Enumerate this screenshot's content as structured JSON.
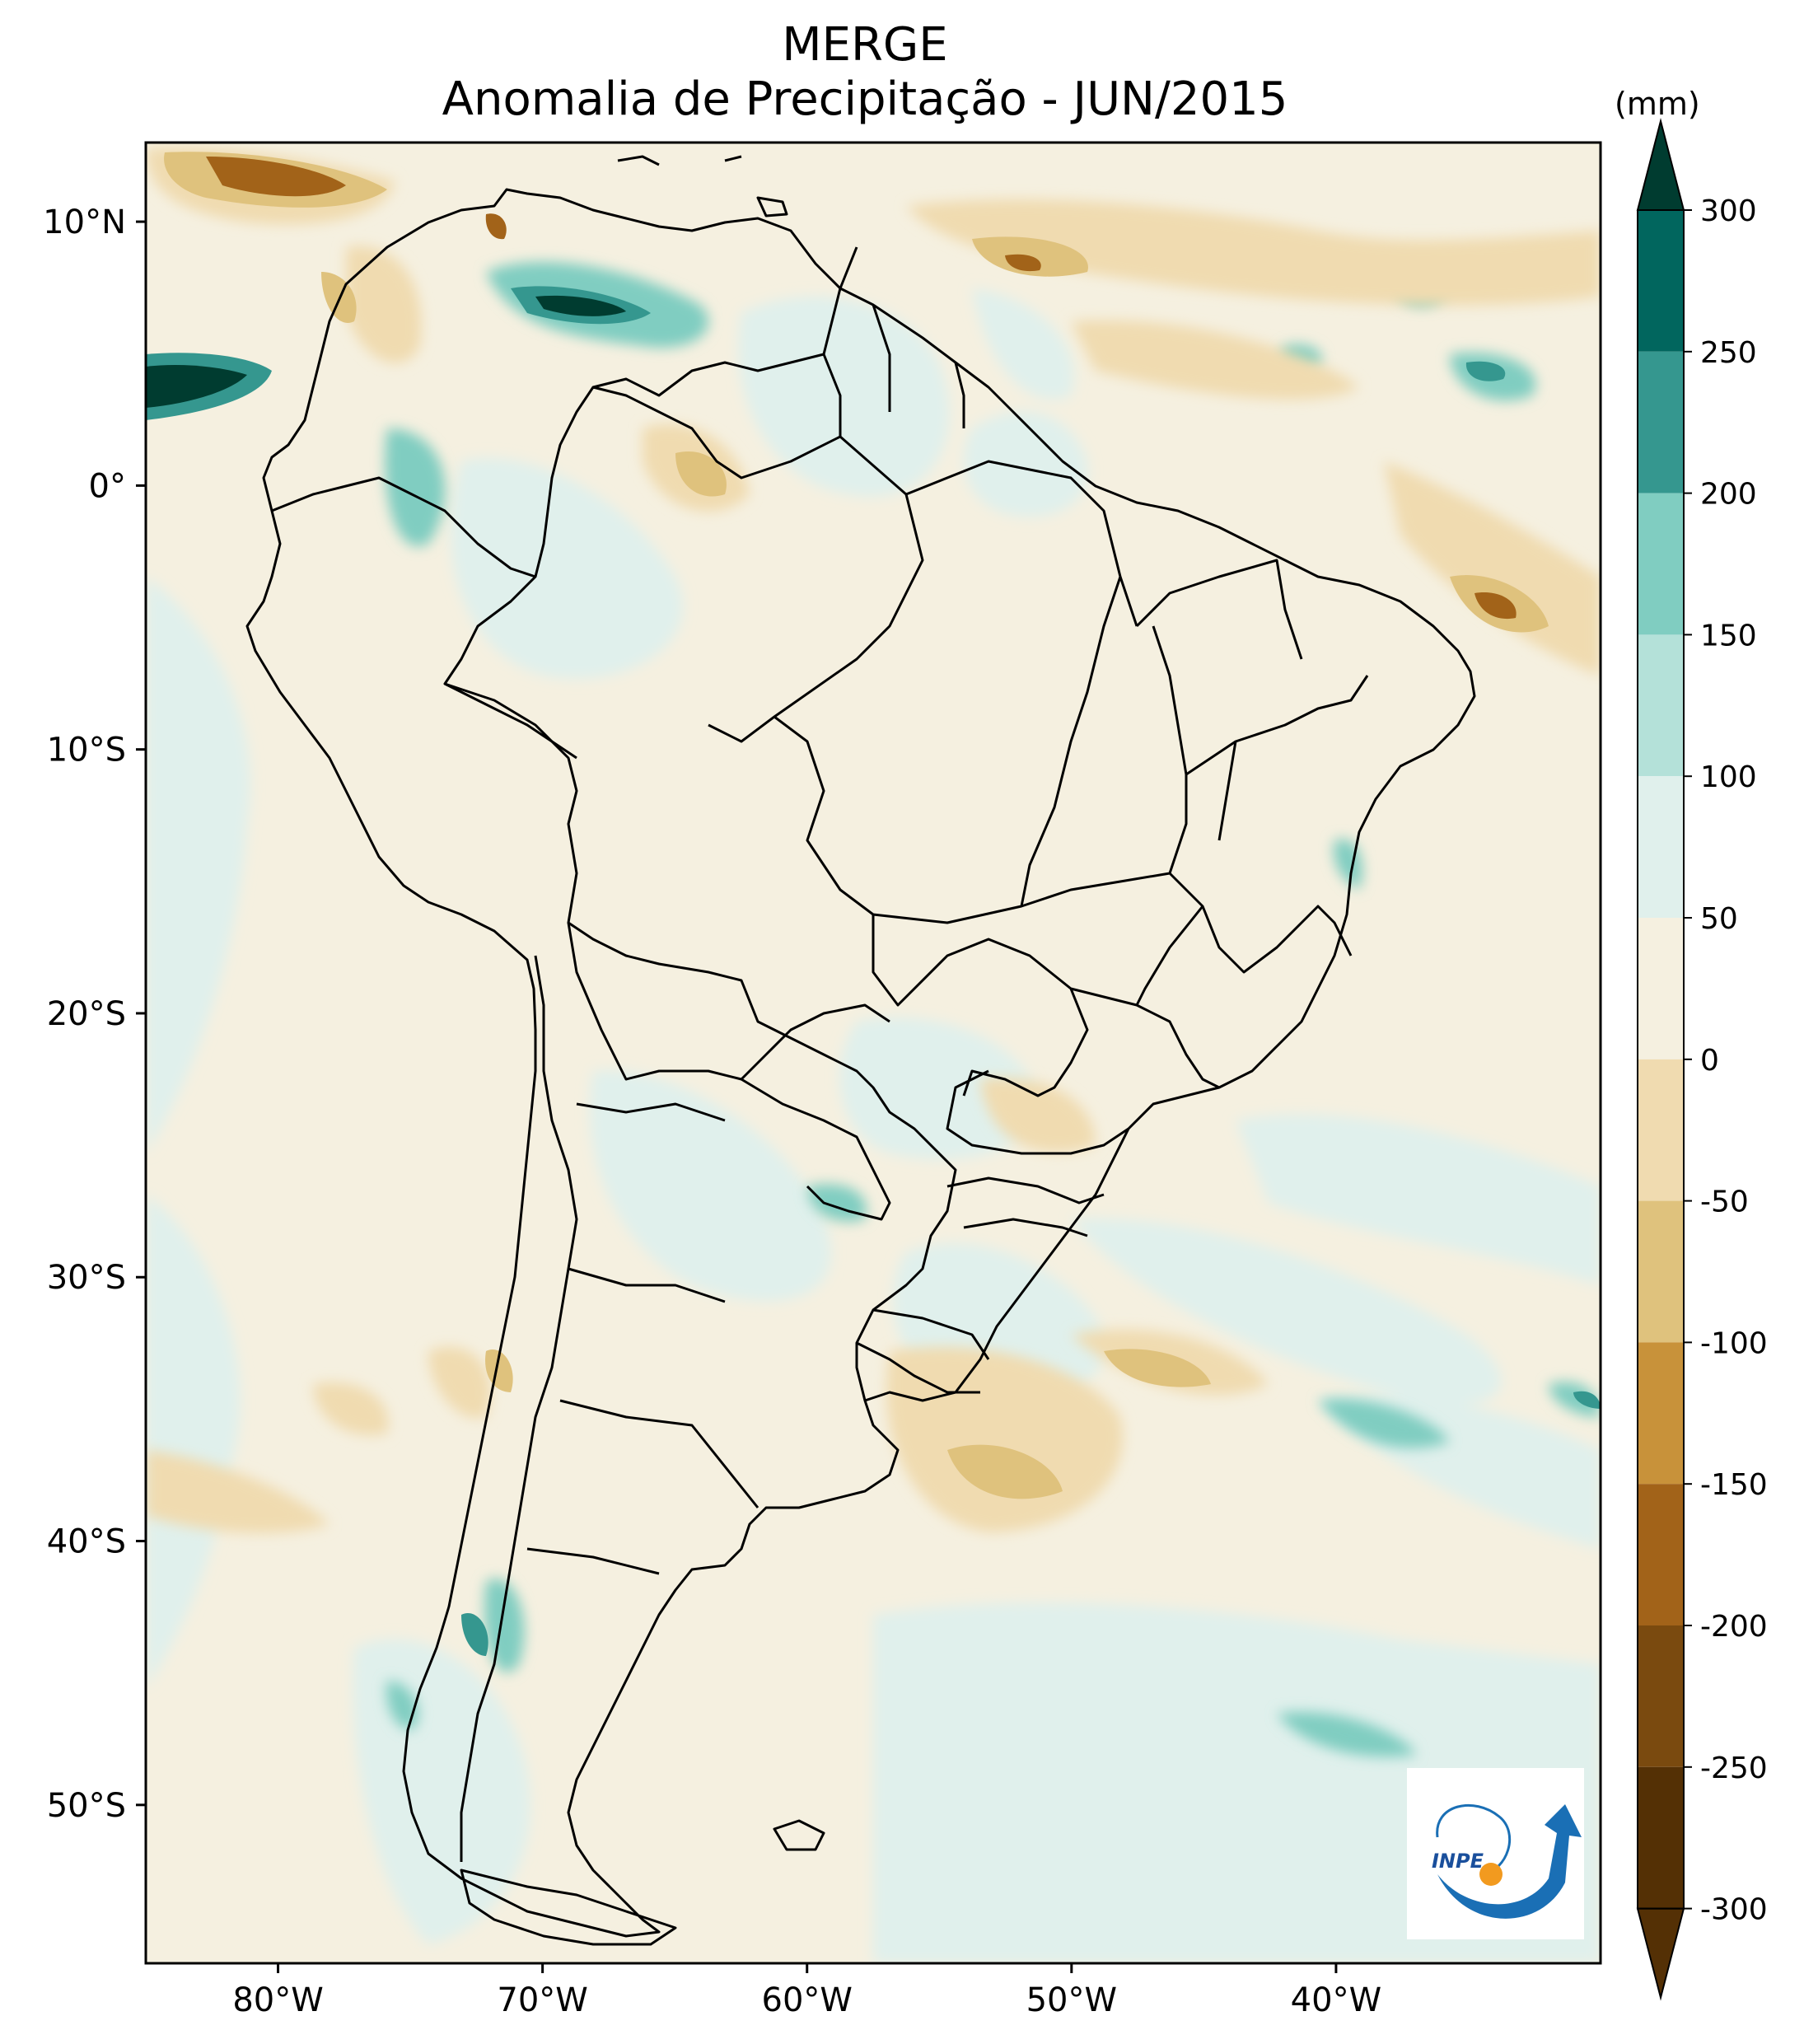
{
  "figure": {
    "title_line1": "MERGE",
    "title_line2": "Anomalia de Precipitação - JUN/2015",
    "units": "(mm)",
    "logo_text": "INPE"
  },
  "map": {
    "lon_range": [
      -85,
      -30
    ],
    "lat_range": [
      -56,
      13
    ],
    "lat_ticks": [
      {
        "lat": 10,
        "label": "10°N"
      },
      {
        "lat": 0,
        "label": "0°"
      },
      {
        "lat": -10,
        "label": "10°S"
      },
      {
        "lat": -20,
        "label": "20°S"
      },
      {
        "lat": -30,
        "label": "30°S"
      },
      {
        "lat": -40,
        "label": "40°S"
      },
      {
        "lat": -50,
        "label": "50°S"
      }
    ],
    "lon_ticks": [
      {
        "lon": -80,
        "label": "80°W"
      },
      {
        "lon": -70,
        "label": "70°W"
      },
      {
        "lon": -60,
        "label": "60°W"
      },
      {
        "lon": -50,
        "label": "50°W"
      },
      {
        "lon": -40,
        "label": "40°W"
      }
    ]
  },
  "colorbar": {
    "levels": [
      "300",
      "250",
      "200",
      "150",
      "100",
      "50",
      "0",
      "-50",
      "-100",
      "-150",
      "-200",
      "-250",
      "-300"
    ],
    "colors": [
      "#003c30",
      "#01665e",
      "#35978f",
      "#80cdc1",
      "#b4e1d9",
      "#e0f0ec",
      "#f5f0e0",
      "#f0dbb0",
      "#dfc27d",
      "#c8923a",
      "#a26319",
      "#7a4a0f",
      "#543005"
    ]
  }
}
